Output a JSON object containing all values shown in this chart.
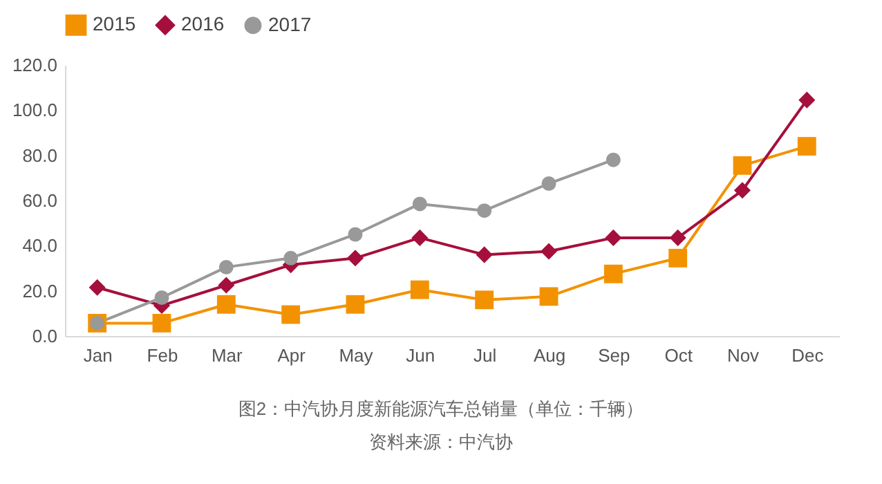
{
  "chart_data": {
    "type": "line",
    "categories": [
      "Jan",
      "Feb",
      "Mar",
      "Apr",
      "May",
      "Jun",
      "Jul",
      "Aug",
      "Sep",
      "Oct",
      "Nov",
      "Dec"
    ],
    "series": [
      {
        "name": "2015",
        "color": "#f39200",
        "marker": "square",
        "values": [
          5.7,
          5.7,
          14,
          9.5,
          14,
          20.5,
          16,
          17.5,
          27.5,
          34.5,
          75.5,
          84
        ]
      },
      {
        "name": "2016",
        "color": "#a50f3c",
        "marker": "diamond",
        "values": [
          21.5,
          13.5,
          22.5,
          31.5,
          34.5,
          43.5,
          36,
          37.5,
          43.5,
          43.5,
          64.5,
          104.5
        ]
      },
      {
        "name": "2017",
        "color": "#999999",
        "marker": "circle",
        "values": [
          5.7,
          17,
          30.5,
          34.5,
          45,
          58.5,
          55.5,
          67.5,
          78,
          null,
          null,
          null
        ]
      }
    ],
    "ylim": [
      0,
      120
    ],
    "yticks": [
      {
        "value": 0,
        "label": "0.0"
      },
      {
        "value": 20,
        "label": "20.0"
      },
      {
        "value": 40,
        "label": "40.0"
      },
      {
        "value": 60,
        "label": "60.0"
      },
      {
        "value": 80,
        "label": "80.0"
      },
      {
        "value": 100,
        "label": "100.0"
      },
      {
        "value": 120,
        "label": "120.0"
      }
    ],
    "grid": false,
    "legend": "top",
    "annotations": [
      "图2：中汽协月度新能源汽车总销量（单位：千辆）",
      "资料来源：中汽协"
    ]
  }
}
